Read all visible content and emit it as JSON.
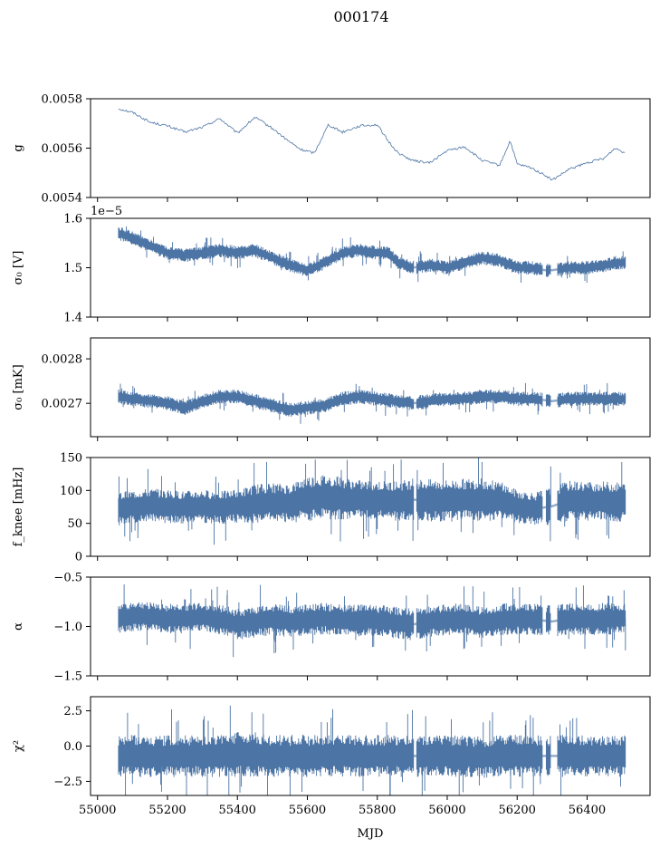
{
  "title": "000174",
  "colors": {
    "series": "#4c74a5",
    "axes": "#000000"
  },
  "chart_data": [
    {
      "type": "line",
      "ylabel": "g",
      "ylim": [
        0.0054,
        0.0058
      ],
      "yticks": [
        0.0054,
        0.0056,
        0.0058
      ],
      "yticklabels": [
        "0.0054",
        "0.0056",
        "0.0058"
      ],
      "offset_text": "",
      "style": "thin",
      "x": [
        55060,
        55100,
        55150,
        55200,
        55250,
        55300,
        55350,
        55400,
        55450,
        55500,
        55540,
        55580,
        55620,
        55660,
        55700,
        55750,
        55800,
        55830,
        55860,
        55900,
        55950,
        56000,
        56050,
        56100,
        56150,
        56180,
        56200,
        56240,
        56280,
        56300,
        56350,
        56400,
        56450,
        56480,
        56510
      ],
      "values": [
        0.00576,
        0.005745,
        0.005705,
        0.00569,
        0.005665,
        0.005685,
        0.00572,
        0.00566,
        0.005725,
        0.00568,
        0.005635,
        0.005595,
        0.00558,
        0.005695,
        0.005665,
        0.00569,
        0.005695,
        0.00563,
        0.00558,
        0.00555,
        0.00554,
        0.00559,
        0.005605,
        0.00555,
        0.00553,
        0.00563,
        0.005535,
        0.00552,
        0.00549,
        0.00547,
        0.005515,
        0.00554,
        0.00556,
        0.0056,
        0.00558
      ],
      "band": [
        3e-06,
        3e-06,
        3e-06,
        3e-06,
        3e-06,
        3e-06,
        3e-06,
        3e-06,
        3e-06,
        3e-06,
        3e-06,
        3e-06,
        3e-06,
        3e-06,
        3e-06,
        3e-06,
        3e-06,
        3e-06,
        3e-06,
        3e-06,
        3e-06,
        3e-06,
        3e-06,
        3e-06,
        3e-06,
        3e-06,
        3e-06,
        3e-06,
        3e-06,
        3e-06,
        3e-06,
        3e-06,
        3e-06,
        3e-06,
        3e-06
      ]
    },
    {
      "type": "line",
      "ylabel": "σ0 [V]",
      "ylim": [
        1.4e-05,
        1.6e-05
      ],
      "yticks": [
        1.4e-05,
        1.5e-05,
        1.6e-05
      ],
      "yticklabels": [
        "1.4",
        "1.5",
        "1.6"
      ],
      "offset_text": "1e−5",
      "style": "band",
      "x": [
        55060,
        55100,
        55150,
        55200,
        55250,
        55300,
        55350,
        55400,
        55450,
        55500,
        55550,
        55600,
        55650,
        55700,
        55750,
        55800,
        55830,
        55860,
        55900,
        55950,
        56000,
        56050,
        56100,
        56150,
        56200,
        56240,
        56280,
        56300,
        56350,
        56400,
        56450,
        56480,
        56510
      ],
      "values": [
        1.57e-05,
        1.56e-05,
        1.545e-05,
        1.53e-05,
        1.525e-05,
        1.53e-05,
        1.535e-05,
        1.53e-05,
        1.535e-05,
        1.52e-05,
        1.505e-05,
        1.495e-05,
        1.51e-05,
        1.53e-05,
        1.535e-05,
        1.53e-05,
        1.53e-05,
        1.51e-05,
        1.5e-05,
        1.505e-05,
        1.5e-05,
        1.51e-05,
        1.52e-05,
        1.515e-05,
        1.5e-05,
        1.5e-05,
        1.495e-05,
        1.495e-05,
        1.5e-05,
        1.5e-05,
        1.505e-05,
        1.51e-05,
        1.51e-05
      ],
      "band": [
        1.2e-07,
        1.2e-07,
        1.2e-07,
        1.2e-07,
        1.2e-07,
        1.2e-07,
        1.2e-07,
        1.2e-07,
        1.2e-07,
        1.2e-07,
        1.2e-07,
        1.2e-07,
        1.2e-07,
        1.2e-07,
        1.2e-07,
        1.2e-07,
        1.2e-07,
        1.2e-07,
        1.2e-07,
        1.2e-07,
        1.2e-07,
        1.2e-07,
        1.2e-07,
        1.2e-07,
        1.2e-07,
        1.2e-07,
        1.2e-07,
        1.2e-07,
        1.2e-07,
        1.2e-07,
        1.2e-07,
        1.2e-07,
        1.2e-07
      ]
    },
    {
      "type": "line",
      "ylabel": "σ0 [mK]",
      "ylim": [
        0.002625,
        0.002847
      ],
      "yticks": [
        0.0027,
        0.0028
      ],
      "yticklabels": [
        "0.0027",
        "0.0028"
      ],
      "offset_text": "",
      "style": "band",
      "x": [
        55060,
        55100,
        55150,
        55200,
        55250,
        55300,
        55350,
        55400,
        55450,
        55500,
        55550,
        55600,
        55650,
        55700,
        55750,
        55800,
        55850,
        55900,
        55950,
        56000,
        56050,
        56100,
        56150,
        56200,
        56250,
        56300,
        56350,
        56400,
        56450,
        56510
      ],
      "values": [
        0.002715,
        0.00271,
        0.002705,
        0.0027,
        0.00269,
        0.002705,
        0.002715,
        0.002715,
        0.002705,
        0.002695,
        0.002685,
        0.00269,
        0.002695,
        0.00271,
        0.002715,
        0.00271,
        0.002705,
        0.0027,
        0.002705,
        0.00271,
        0.00271,
        0.002715,
        0.002715,
        0.00271,
        0.00271,
        0.002705,
        0.00271,
        0.00271,
        0.00271,
        0.00271
      ],
      "band": [
        1.4e-05,
        1.4e-05,
        1.4e-05,
        1.4e-05,
        1.4e-05,
        1.4e-05,
        1.4e-05,
        1.4e-05,
        1.4e-05,
        1.4e-05,
        1.4e-05,
        1.4e-05,
        1.4e-05,
        1.4e-05,
        1.4e-05,
        1.4e-05,
        1.4e-05,
        1.4e-05,
        1.4e-05,
        1.4e-05,
        1.4e-05,
        1.4e-05,
        1.4e-05,
        1.4e-05,
        1.4e-05,
        1.4e-05,
        1.4e-05,
        1.4e-05,
        1.4e-05,
        1.4e-05
      ]
    },
    {
      "type": "line",
      "ylabel": "fknee [mHz]",
      "ylim": [
        0,
        150
      ],
      "yticks": [
        0,
        50,
        100,
        150
      ],
      "yticklabels": [
        "0",
        "50",
        "100",
        "150"
      ],
      "offset_text": "",
      "style": "band",
      "x": [
        55060,
        55100,
        55150,
        55200,
        55250,
        55300,
        55350,
        55400,
        55450,
        55500,
        55550,
        55600,
        55650,
        55700,
        55750,
        55800,
        55850,
        55900,
        55950,
        56000,
        56050,
        56100,
        56150,
        56200,
        56250,
        56300,
        56350,
        56400,
        56450,
        56510
      ],
      "values": [
        72,
        75,
        78,
        75,
        74,
        76,
        74,
        76,
        80,
        82,
        80,
        88,
        90,
        88,
        86,
        85,
        84,
        86,
        85,
        84,
        86,
        86,
        84,
        76,
        72,
        76,
        85,
        84,
        84,
        82
      ],
      "band": [
        22,
        22,
        22,
        22,
        22,
        22,
        22,
        22,
        26,
        26,
        26,
        30,
        30,
        28,
        26,
        26,
        26,
        28,
        28,
        28,
        28,
        28,
        26,
        22,
        22,
        26,
        26,
        26,
        26,
        26
      ]
    },
    {
      "type": "line",
      "ylabel": "α",
      "ylim": [
        -1.5,
        -0.5
      ],
      "yticks": [
        -1.5,
        -1.0,
        -0.5
      ],
      "yticklabels": [
        "−1.5",
        "−1.0",
        "−0.5"
      ],
      "offset_text": "",
      "style": "band",
      "x": [
        55060,
        55100,
        55150,
        55200,
        55250,
        55300,
        55350,
        55400,
        55450,
        55500,
        55550,
        55600,
        55650,
        55700,
        55750,
        55800,
        55850,
        55900,
        55950,
        56000,
        56050,
        56100,
        56150,
        56200,
        56250,
        56300,
        56350,
        56400,
        56450,
        56510
      ],
      "values": [
        -0.92,
        -0.9,
        -0.9,
        -0.92,
        -0.92,
        -0.9,
        -0.93,
        -0.98,
        -0.95,
        -0.93,
        -0.95,
        -0.93,
        -0.92,
        -0.93,
        -0.94,
        -0.94,
        -0.96,
        -0.98,
        -0.95,
        -0.93,
        -0.93,
        -0.96,
        -0.93,
        -0.92,
        -0.93,
        -0.95,
        -0.92,
        -0.93,
        -0.92,
        -0.92
      ],
      "band": [
        0.13,
        0.13,
        0.13,
        0.13,
        0.13,
        0.13,
        0.13,
        0.14,
        0.14,
        0.14,
        0.14,
        0.14,
        0.14,
        0.14,
        0.14,
        0.14,
        0.14,
        0.14,
        0.14,
        0.14,
        0.14,
        0.14,
        0.14,
        0.14,
        0.14,
        0.14,
        0.14,
        0.14,
        0.14,
        0.14
      ]
    },
    {
      "type": "line",
      "ylabel": "χ2",
      "ylim": [
        -3.5,
        3.5
      ],
      "yticks": [
        -2.5,
        0.0,
        2.5
      ],
      "yticklabels": [
        "−2.5",
        "0.0",
        "2.5"
      ],
      "offset_text": "",
      "style": "band",
      "x": [
        55060,
        55100,
        55150,
        55200,
        55250,
        55300,
        55350,
        55400,
        55450,
        55500,
        55550,
        55600,
        55650,
        55700,
        55750,
        55800,
        55850,
        55900,
        55950,
        56000,
        56050,
        56100,
        56150,
        56200,
        56250,
        56300,
        56350,
        56400,
        56450,
        56510
      ],
      "values": [
        -0.7,
        -0.7,
        -0.7,
        -0.7,
        -0.7,
        -0.7,
        -0.7,
        -0.6,
        -0.6,
        -0.7,
        -0.7,
        -0.7,
        -0.7,
        -0.7,
        -0.7,
        -0.7,
        -0.7,
        -0.7,
        -0.7,
        -0.7,
        -0.7,
        -0.8,
        -0.7,
        -0.7,
        -0.7,
        -0.7,
        -0.7,
        -0.7,
        -0.7,
        -0.7
      ],
      "band": [
        1.3,
        1.3,
        1.3,
        1.3,
        1.3,
        1.3,
        1.3,
        1.4,
        1.4,
        1.3,
        1.3,
        1.3,
        1.3,
        1.3,
        1.3,
        1.3,
        1.3,
        1.3,
        1.3,
        1.3,
        1.3,
        1.3,
        1.3,
        1.3,
        1.3,
        1.3,
        1.3,
        1.3,
        1.3,
        1.3
      ]
    }
  ],
  "xaxis": {
    "label": "MJD",
    "lim": [
      54980,
      56580
    ],
    "ticks": [
      55000,
      55200,
      55400,
      55600,
      55800,
      56000,
      56200,
      56400
    ],
    "ticklabels": [
      "55000",
      "55200",
      "55400",
      "55600",
      "55800",
      "56000",
      "56200",
      "56400"
    ]
  },
  "gaps": [
    [
      55905,
      55912
    ],
    [
      56272,
      56282
    ],
    [
      56296,
      56314
    ]
  ]
}
